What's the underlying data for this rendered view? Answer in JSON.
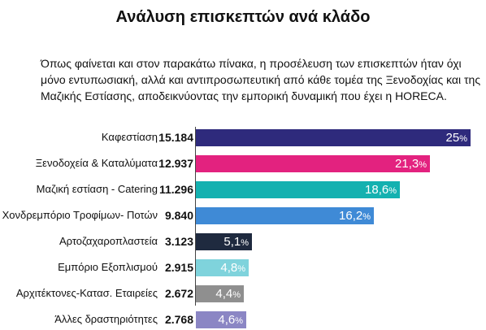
{
  "title": "Ανάλυση επισκεπτών ανά κλάδο",
  "intro": [
    "Όπως φαίνεται και στον παρακάτω πίνακα, η προσέλευση των επισκεπτών ήταν όχι",
    "μόνο εντυπωσιακή, αλλά και αντιπροσωπευτική από κάθε τομέα της Ξενοδοχίας και της",
    "Μαζικής Εστίασης, αποδεικνύοντας την εμπορική δυναμική που έχει η HORECA."
  ],
  "chart_data": {
    "type": "bar",
    "orientation": "horizontal",
    "categories": [
      "Καφεστίαση",
      "Ξενοδοχεία & Καταλύματα",
      "Μαζική εστίαση - Catering",
      "Χονδρεμπόριο Τροφίμων- Ποτών",
      "Αρτοζαχαροπλαστεία",
      "Εμπόριο Εξοπλισμού",
      "Αρχιτέκτονες-Κατασ. Εταιρείες",
      "Άλλες δραστηριότητες"
    ],
    "visitor_counts": [
      "15.184",
      "12.937",
      "11.296",
      "9.840",
      "3.123",
      "2.915",
      "2.672",
      "2.768"
    ],
    "values": [
      25,
      21.3,
      18.6,
      16.2,
      5.1,
      4.8,
      4.4,
      4.6
    ],
    "value_labels": [
      "25",
      "21,3",
      "18,6",
      "16,2",
      "5,1",
      "4,8",
      "4,4",
      "4,6"
    ],
    "value_suffix": "%",
    "colors": [
      "#2e2a7c",
      "#e3227f",
      "#14b1b0",
      "#3f8ad6",
      "#1f2a3f",
      "#7fd3dc",
      "#8f8f8f",
      "#8b86c4"
    ],
    "xlim": [
      0,
      25
    ]
  }
}
